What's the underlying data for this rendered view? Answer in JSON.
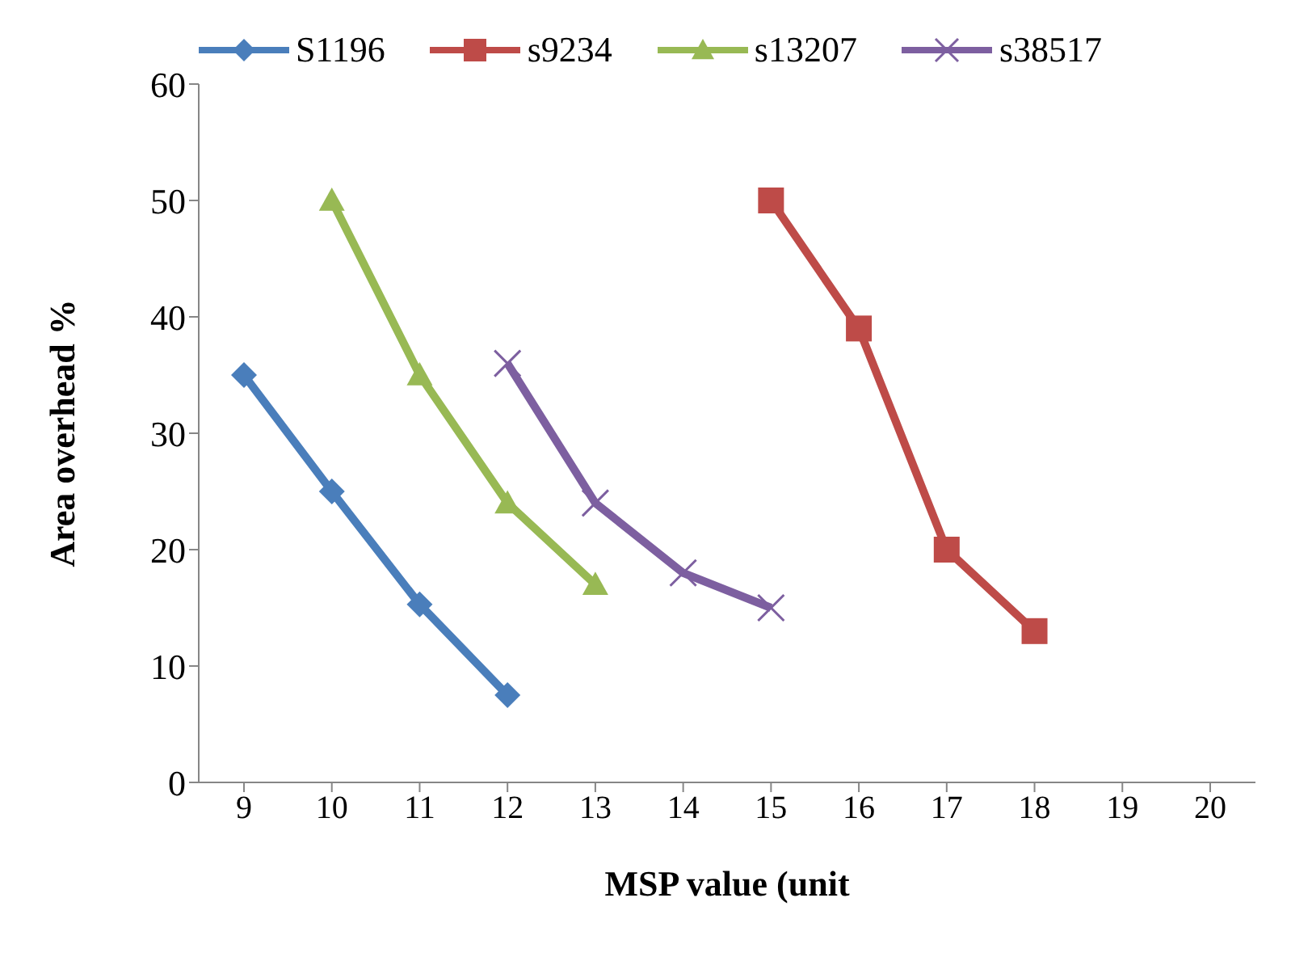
{
  "chart_data": {
    "type": "line",
    "xlabel": "MSP value (unit",
    "ylabel": "Area overhead %",
    "categories": [
      "9",
      "10",
      "11",
      "12",
      "13",
      "14",
      "15",
      "16",
      "17",
      "18",
      "19",
      "20"
    ],
    "series": [
      {
        "name": "S1196",
        "color": "#4a7ebb",
        "marker": "diamond",
        "values": [
          35,
          25,
          15.3,
          7.5,
          null,
          null,
          null,
          null,
          null,
          null,
          null,
          null
        ]
      },
      {
        "name": "s9234",
        "color": "#be4b48",
        "marker": "square",
        "values": [
          null,
          null,
          null,
          null,
          null,
          null,
          50,
          39,
          20,
          13,
          null,
          null
        ]
      },
      {
        "name": "s13207",
        "color": "#98b954",
        "marker": "triangle",
        "values": [
          null,
          50,
          35,
          24,
          17,
          null,
          null,
          null,
          null,
          null,
          null,
          null
        ]
      },
      {
        "name": "s38517",
        "color": "#7d5fa0",
        "marker": "cross",
        "values": [
          null,
          null,
          null,
          36,
          24,
          18,
          15,
          null,
          null,
          null,
          null,
          null
        ]
      }
    ],
    "ylim": [
      0,
      60
    ],
    "yticks": [
      0,
      10,
      20,
      30,
      40,
      50,
      60
    ],
    "legend": "top",
    "grid": false
  }
}
